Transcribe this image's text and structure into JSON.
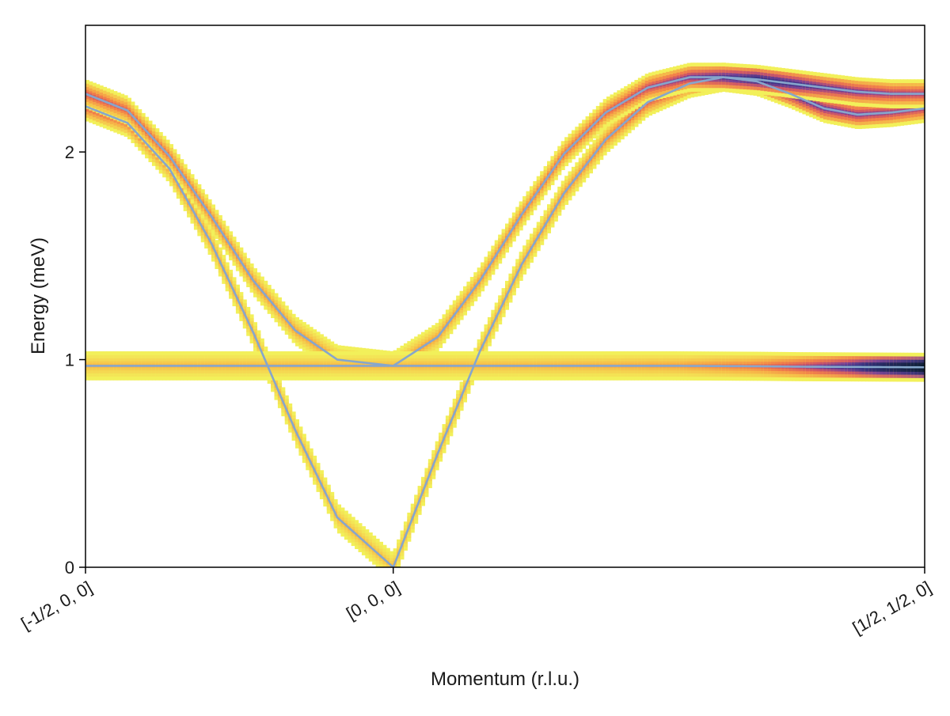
{
  "chart_data": {
    "type": "heatmap",
    "title": "",
    "xlabel": "Momentum (r.l.u.)",
    "ylabel": "Energy (meV)",
    "x_ticks": [
      {
        "label": "[-1/2, 0, 0]",
        "pos": 0
      },
      {
        "label": "[0, 0, 0]",
        "pos": 0.3667
      },
      {
        "label": "[1/2, 1/2, 0]",
        "pos": 1
      }
    ],
    "xlim": [
      0,
      1
    ],
    "y_ticks": [
      0,
      1,
      2
    ],
    "ylim": [
      0,
      2.61
    ],
    "grid": false,
    "legend": "none",
    "colormap": [
      "#f2f05a",
      "#f7b847",
      "#f1774a",
      "#c94d6b",
      "#6b3fa0",
      "#2a2f80",
      "#0b1e2f"
    ],
    "dispersion_lines_color": "#86a6cc",
    "series": [
      {
        "x": [
          0,
          0.05,
          0.1,
          0.15,
          0.2,
          0.25,
          0.3,
          0.3667,
          0.42,
          0.47,
          0.52,
          0.57,
          0.62,
          0.67,
          0.72,
          0.76,
          0.8,
          0.84,
          0.88,
          0.92,
          0.96,
          1
        ],
        "values": [
          2.22,
          2.14,
          1.92,
          1.56,
          1.13,
          0.66,
          0.24,
          0.0,
          0.55,
          1.04,
          1.46,
          1.8,
          2.06,
          2.24,
          2.33,
          2.36,
          2.34,
          2.28,
          2.21,
          2.18,
          2.19,
          2.21
        ],
        "intensity": [
          0.35,
          0.25,
          0.15,
          0.1,
          0.08,
          0.06,
          0.05,
          0.04,
          0.06,
          0.08,
          0.1,
          0.15,
          0.2,
          0.3,
          0.4,
          0.45,
          0.5,
          0.55,
          0.52,
          0.48,
          0.45,
          0.42
        ]
      },
      {
        "x": [
          0,
          0.05,
          0.1,
          0.15,
          0.2,
          0.25,
          0.3,
          0.3667,
          0.42,
          0.47,
          0.52,
          0.57,
          0.62,
          0.67,
          0.72,
          0.76,
          0.8,
          0.84,
          0.88,
          0.92,
          0.96,
          1
        ],
        "values": [
          2.28,
          2.2,
          1.98,
          1.69,
          1.38,
          1.14,
          1.0,
          0.97,
          1.11,
          1.38,
          1.7,
          1.99,
          2.19,
          2.31,
          2.36,
          2.36,
          2.35,
          2.33,
          2.31,
          2.29,
          2.28,
          2.28
        ],
        "intensity": [
          0.35,
          0.3,
          0.25,
          0.2,
          0.15,
          0.12,
          0.1,
          0.1,
          0.12,
          0.15,
          0.2,
          0.25,
          0.3,
          0.4,
          0.5,
          0.6,
          0.7,
          0.65,
          0.55,
          0.5,
          0.45,
          0.42
        ]
      },
      {
        "x": [
          0,
          0.1,
          0.2,
          0.3,
          0.3667,
          0.5,
          0.6,
          0.7,
          0.8,
          0.85,
          0.9,
          0.95,
          1
        ],
        "values": [
          0.97,
          0.97,
          0.97,
          0.97,
          0.97,
          0.97,
          0.97,
          0.97,
          0.968,
          0.966,
          0.965,
          0.964,
          0.963
        ],
        "intensity": [
          0.05,
          0.05,
          0.05,
          0.05,
          0.05,
          0.06,
          0.08,
          0.12,
          0.25,
          0.4,
          0.6,
          0.85,
          1.0
        ]
      }
    ]
  }
}
